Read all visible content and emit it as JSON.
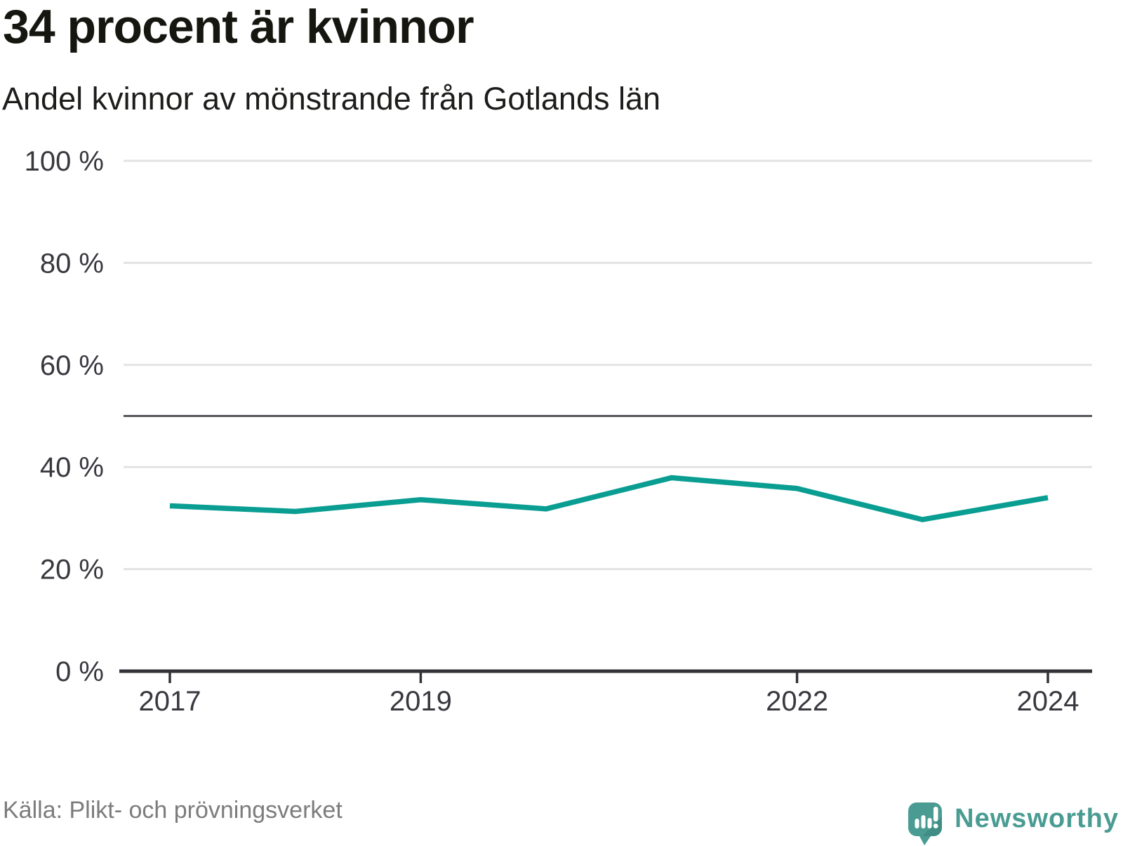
{
  "header": {
    "title": "34 procent är kvinnor",
    "subtitle": "Andel kvinnor av mönstrande från Gotlands län"
  },
  "footer": {
    "source": "Källa: Plikt- och prövningsverket",
    "brand_name": "Newsworthy"
  },
  "colors": {
    "line": "#0a9e92",
    "grid": "#e3e3e3",
    "reference_line": "#56565c",
    "axis": "#333238",
    "tick_label": "#38383f",
    "brand_teal": "#4a9c93",
    "brand_teal_dark": "#3f8d85"
  },
  "chart_data": {
    "type": "line",
    "title": "34 procent är kvinnor",
    "subtitle": "Andel kvinnor av mönstrande från Gotlands län",
    "x": [
      2017,
      2018,
      2019,
      2020,
      2021,
      2022,
      2023,
      2024
    ],
    "series": [
      {
        "name": "Andel kvinnor av mönstrande från Gotlands län",
        "values": [
          32.4,
          31.3,
          33.6,
          31.8,
          37.9,
          35.8,
          29.7,
          34.0
        ]
      }
    ],
    "ylim": [
      0,
      100
    ],
    "yticks": [
      0,
      20,
      40,
      60,
      80,
      100
    ],
    "ytick_labels": [
      "0 %",
      "20 %",
      "40 %",
      "60 %",
      "80 %",
      "100 %"
    ],
    "xticks": [
      2017,
      2019,
      2022,
      2024
    ],
    "xtick_labels": [
      "2017",
      "2019",
      "2022",
      "2024"
    ],
    "reference_line": 50,
    "grid": "horizontal",
    "legend": "none",
    "source": "Källa: Plikt- och prövningsverket"
  }
}
